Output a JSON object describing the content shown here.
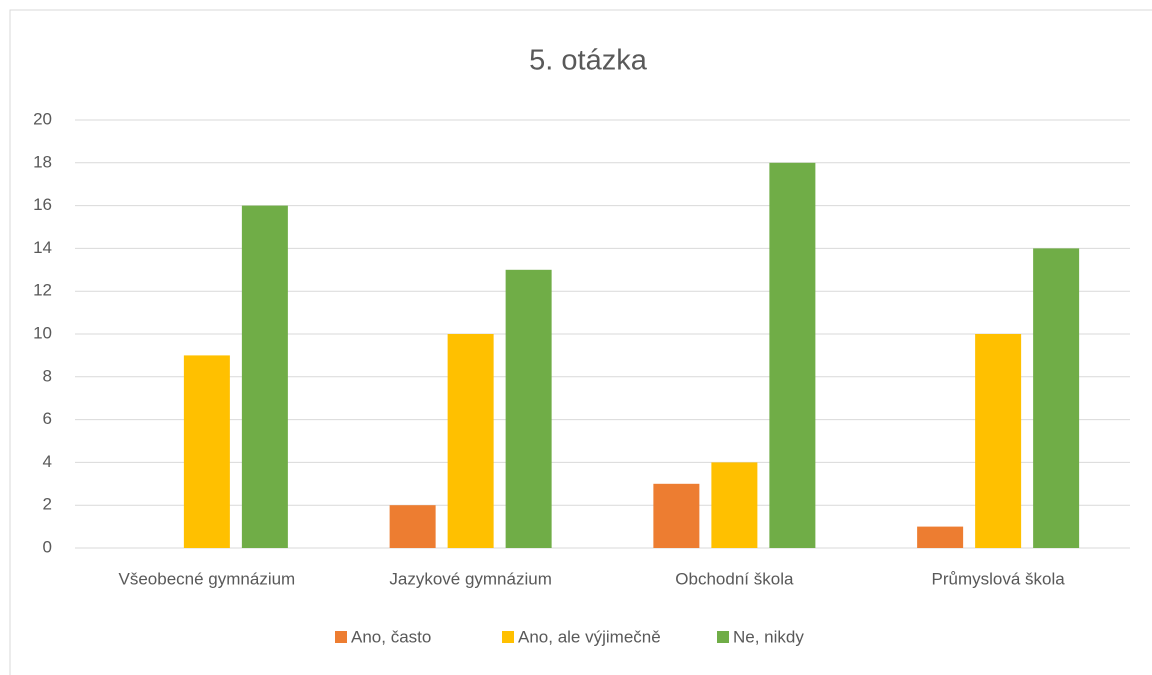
{
  "chart_data": {
    "type": "bar",
    "title": "5. otázka",
    "categories": [
      "Všeobecné gymnázium",
      "Jazykové gymnázium",
      "Obchodní škola",
      "Průmyslová škola"
    ],
    "series": [
      {
        "name": "Ano, často",
        "color": "#ed7d31",
        "values": [
          0,
          2,
          3,
          1
        ]
      },
      {
        "name": "Ano, ale výjimečně",
        "color": "#ffc000",
        "values": [
          9,
          10,
          4,
          10
        ]
      },
      {
        "name": "Ne, nikdy",
        "color": "#70ad47",
        "values": [
          16,
          13,
          18,
          14
        ]
      }
    ],
    "ylim": [
      0,
      20
    ],
    "yticks": [
      0,
      2,
      4,
      6,
      8,
      10,
      12,
      14,
      16,
      18,
      20
    ],
    "grid": true,
    "legend": "bottom"
  }
}
